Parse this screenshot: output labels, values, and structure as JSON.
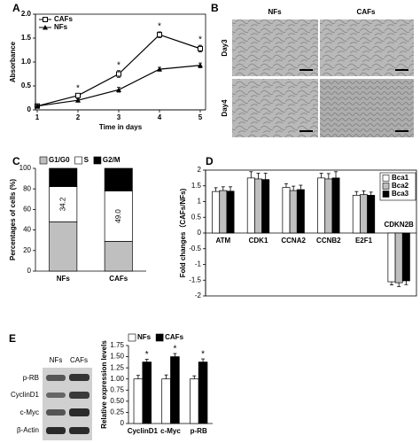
{
  "chart_data": [
    {
      "type": "line",
      "label": "A",
      "xlabel": "Time in  days",
      "ylabel": "Absorbance",
      "x": [
        1,
        2,
        3,
        4,
        5
      ],
      "xlim": [
        1,
        5
      ],
      "xticks": [
        1,
        2,
        3,
        4,
        5
      ],
      "ylim": [
        0,
        2
      ],
      "yticks": [
        0,
        0.5,
        {
          "value": 1,
          "label": "1.0"
        },
        1.5,
        {
          "value": 2,
          "label": "2.0"
        }
      ],
      "legend": "upper left",
      "series": [
        {
          "name": "CAFs",
          "color": "#000000",
          "marker": "open-square",
          "values": [
            0.08,
            0.3,
            0.75,
            1.57,
            1.28
          ],
          "errors": [
            0.02,
            0.04,
            0.07,
            0.06,
            0.07
          ]
        },
        {
          "name": "NFs",
          "color": "#000000",
          "marker": "filled-triangle",
          "values": [
            0.08,
            0.2,
            0.42,
            0.85,
            0.93
          ],
          "errors": [
            0.02,
            0.03,
            0.05,
            0.04,
            0.05
          ]
        }
      ],
      "significance": [
        null,
        "*",
        "*",
        "*",
        "*"
      ]
    },
    {
      "type": "bar",
      "stacked": true,
      "label": "C",
      "ylabel": "Percentages of cells (%)",
      "categories": [
        "NFs",
        "CAFs"
      ],
      "ylim": [
        0,
        100
      ],
      "yticks": [
        0,
        20,
        40,
        60,
        80,
        100
      ],
      "legend": "top",
      "series": [
        {
          "name": "G1/G0",
          "color": "#bfbfbf",
          "values": [
            48,
            29
          ]
        },
        {
          "name": "S",
          "color": "#ffffff",
          "values": [
            34.2,
            49.0
          ],
          "value_labels": [
            "34.2",
            "49.0"
          ]
        },
        {
          "name": "G2/M",
          "color": "#000000",
          "values": [
            17.8,
            22
          ]
        }
      ]
    },
    {
      "type": "bar",
      "label": "D",
      "ylabel": "Fold changes（CAFs/NFs)",
      "categories": [
        "ATM",
        "CDK1",
        "CCNA2",
        "CCNB2",
        "E2F1",
        "CDKN2B"
      ],
      "ylim": [
        -2,
        2
      ],
      "yticks": [
        -2,
        -1.5,
        -1,
        -0.5,
        0,
        0.5,
        1,
        1.5,
        2
      ],
      "legend": "upper right",
      "series": [
        {
          "name": "Bca1",
          "color": "#ffffff",
          "values": [
            1.32,
            1.75,
            1.45,
            1.75,
            1.2,
            -1.55
          ],
          "errors": [
            0.12,
            0.2,
            0.12,
            0.15,
            0.12,
            0.1
          ]
        },
        {
          "name": "Bca2",
          "color": "#bfbfbf",
          "values": [
            1.35,
            1.72,
            1.35,
            1.72,
            1.22,
            -1.58
          ],
          "errors": [
            0.12,
            0.18,
            0.14,
            0.17,
            0.12,
            0.12
          ]
        },
        {
          "name": "Bca3",
          "color": "#000000",
          "values": [
            1.33,
            1.7,
            1.38,
            1.75,
            1.2,
            -1.52
          ],
          "errors": [
            0.14,
            0.2,
            0.14,
            0.2,
            0.1,
            0.12
          ]
        }
      ]
    },
    {
      "type": "bar",
      "label": "E",
      "ylabel": "Relative expression levels",
      "categories": [
        "CyclinD1",
        "c-Myc",
        "p-RB"
      ],
      "ylim": [
        0,
        1.75
      ],
      "yticks": [
        0,
        0.25,
        {
          "value": 0.5,
          "label": "0.50"
        },
        0.75,
        {
          "value": 1,
          "label": "1.00"
        },
        1.25,
        {
          "value": 1.5,
          "label": "1.50"
        },
        1.75
      ],
      "legend": "top",
      "series": [
        {
          "name": "NFs",
          "color": "#ffffff",
          "values": [
            1.0,
            1.0,
            1.0
          ],
          "errors": [
            0.08,
            0.09,
            0.07
          ]
        },
        {
          "name": "CAFs",
          "color": "#000000",
          "values": [
            1.38,
            1.5,
            1.38
          ],
          "errors": [
            0.06,
            0.07,
            0.07
          ]
        }
      ],
      "significance": [
        "*",
        "*",
        "*"
      ]
    }
  ],
  "panel_b": {
    "label": "B",
    "columns": [
      "NFs",
      "CAFs"
    ],
    "rows": [
      "Day3",
      "Day4"
    ]
  },
  "blot": {
    "columns": [
      "NFs",
      "CAFs"
    ],
    "rows": [
      "p-RB",
      "CyclinD1",
      "c-Myc",
      "β-Actin"
    ]
  }
}
